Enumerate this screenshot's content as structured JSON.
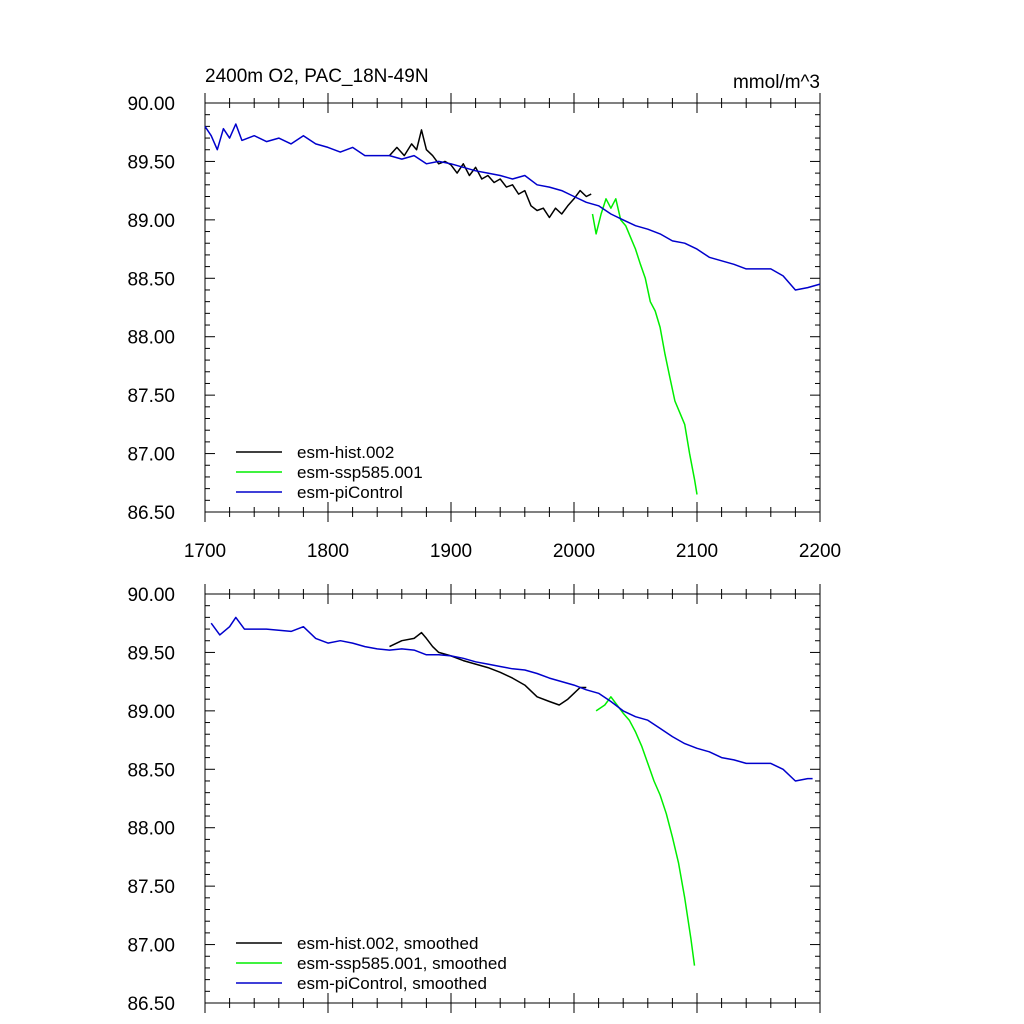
{
  "figure": {
    "title_left": "2400m O2, PAC_18N-49N",
    "title_right": "mmol/m^3"
  },
  "panels": [
    {
      "id": "raw",
      "legend": [
        {
          "label": "esm-hist.002",
          "color": "#000000"
        },
        {
          "label": "esm-ssp585.001",
          "color": "#00ee00"
        },
        {
          "label": "esm-piControl",
          "color": "#0000cc"
        }
      ],
      "x_tick_labels": [
        "1700",
        "1800",
        "1900",
        "2000",
        "2100",
        "2200"
      ],
      "y_tick_labels": [
        "90.00",
        "89.50",
        "89.00",
        "88.50",
        "88.00",
        "87.50",
        "87.00",
        "86.50"
      ]
    },
    {
      "id": "smoothed",
      "legend": [
        {
          "label": "esm-hist.002, smoothed",
          "color": "#000000"
        },
        {
          "label": "esm-ssp585.001, smoothed",
          "color": "#00ee00"
        },
        {
          "label": "esm-piControl, smoothed",
          "color": "#0000cc"
        }
      ],
      "y_tick_labels": [
        "90.00",
        "89.50",
        "89.00",
        "88.50",
        "88.00",
        "87.50",
        "87.00",
        "86.50"
      ]
    }
  ],
  "chart_data": [
    {
      "type": "line",
      "title": "2400m O2, PAC_18N-49N",
      "units": "mmol/m^3",
      "xlim": [
        1700,
        2200
      ],
      "ylim": [
        86.5,
        90.0
      ],
      "x_ticks": [
        1700,
        1800,
        1900,
        2000,
        2100,
        2200
      ],
      "y_ticks": [
        90.0,
        89.5,
        89.0,
        88.5,
        88.0,
        87.5,
        87.0,
        86.5
      ],
      "series": [
        {
          "name": "esm-hist.002",
          "color": "#000000",
          "points": [
            [
              1850,
              89.55
            ],
            [
              1856,
              89.62
            ],
            [
              1862,
              89.55
            ],
            [
              1868,
              89.65
            ],
            [
              1872,
              89.6
            ],
            [
              1876,
              89.77
            ],
            [
              1880,
              89.6
            ],
            [
              1885,
              89.55
            ],
            [
              1890,
              89.48
            ],
            [
              1895,
              89.5
            ],
            [
              1900,
              89.47
            ],
            [
              1905,
              89.4
            ],
            [
              1910,
              89.48
            ],
            [
              1915,
              89.38
            ],
            [
              1920,
              89.45
            ],
            [
              1925,
              89.35
            ],
            [
              1930,
              89.38
            ],
            [
              1935,
              89.32
            ],
            [
              1940,
              89.35
            ],
            [
              1945,
              89.28
            ],
            [
              1950,
              89.3
            ],
            [
              1955,
              89.22
            ],
            [
              1960,
              89.25
            ],
            [
              1965,
              89.12
            ],
            [
              1970,
              89.08
            ],
            [
              1975,
              89.1
            ],
            [
              1980,
              89.02
            ],
            [
              1985,
              89.1
            ],
            [
              1990,
              89.05
            ],
            [
              1995,
              89.12
            ],
            [
              2000,
              89.18
            ],
            [
              2005,
              89.25
            ],
            [
              2010,
              89.2
            ],
            [
              2014,
              89.22
            ]
          ]
        },
        {
          "name": "esm-ssp585.001",
          "color": "#00ee00",
          "points": [
            [
              2015,
              89.05
            ],
            [
              2018,
              88.88
            ],
            [
              2022,
              89.05
            ],
            [
              2026,
              89.18
            ],
            [
              2030,
              89.1
            ],
            [
              2034,
              89.18
            ],
            [
              2038,
              89.0
            ],
            [
              2042,
              88.95
            ],
            [
              2046,
              88.85
            ],
            [
              2050,
              88.75
            ],
            [
              2054,
              88.62
            ],
            [
              2058,
              88.5
            ],
            [
              2062,
              88.3
            ],
            [
              2066,
              88.22
            ],
            [
              2070,
              88.08
            ],
            [
              2074,
              87.85
            ],
            [
              2078,
              87.65
            ],
            [
              2082,
              87.45
            ],
            [
              2086,
              87.35
            ],
            [
              2090,
              87.25
            ],
            [
              2094,
              87.0
            ],
            [
              2098,
              86.78
            ],
            [
              2100,
              86.65
            ]
          ]
        },
        {
          "name": "esm-piControl",
          "color": "#0000cc",
          "points": [
            [
              1700,
              89.8
            ],
            [
              1705,
              89.72
            ],
            [
              1710,
              89.6
            ],
            [
              1715,
              89.78
            ],
            [
              1720,
              89.7
            ],
            [
              1725,
              89.82
            ],
            [
              1730,
              89.68
            ],
            [
              1740,
              89.72
            ],
            [
              1750,
              89.67
            ],
            [
              1760,
              89.7
            ],
            [
              1770,
              89.65
            ],
            [
              1780,
              89.72
            ],
            [
              1790,
              89.65
            ],
            [
              1800,
              89.62
            ],
            [
              1810,
              89.58
            ],
            [
              1820,
              89.62
            ],
            [
              1830,
              89.55
            ],
            [
              1840,
              89.55
            ],
            [
              1850,
              89.55
            ],
            [
              1860,
              89.52
            ],
            [
              1870,
              89.55
            ],
            [
              1880,
              89.48
            ],
            [
              1890,
              89.5
            ],
            [
              1900,
              89.48
            ],
            [
              1910,
              89.45
            ],
            [
              1920,
              89.42
            ],
            [
              1930,
              89.4
            ],
            [
              1940,
              89.38
            ],
            [
              1950,
              89.35
            ],
            [
              1960,
              89.38
            ],
            [
              1970,
              89.3
            ],
            [
              1980,
              89.28
            ],
            [
              1990,
              89.25
            ],
            [
              2000,
              89.2
            ],
            [
              2010,
              89.15
            ],
            [
              2020,
              89.12
            ],
            [
              2030,
              89.05
            ],
            [
              2040,
              89.0
            ],
            [
              2050,
              88.95
            ],
            [
              2060,
              88.92
            ],
            [
              2070,
              88.88
            ],
            [
              2080,
              88.82
            ],
            [
              2090,
              88.8
            ],
            [
              2100,
              88.75
            ],
            [
              2110,
              88.68
            ],
            [
              2120,
              88.65
            ],
            [
              2130,
              88.62
            ],
            [
              2140,
              88.58
            ],
            [
              2150,
              88.58
            ],
            [
              2160,
              88.58
            ],
            [
              2170,
              88.52
            ],
            [
              2180,
              88.4
            ],
            [
              2190,
              88.42
            ],
            [
              2200,
              88.45
            ]
          ]
        }
      ]
    },
    {
      "type": "line",
      "xlim": [
        1700,
        2200
      ],
      "ylim": [
        86.5,
        90.0
      ],
      "y_ticks": [
        90.0,
        89.5,
        89.0,
        88.5,
        88.0,
        87.5,
        87.0,
        86.5
      ],
      "series": [
        {
          "name": "esm-hist.002, smoothed",
          "color": "#000000",
          "points": [
            [
              1850,
              89.55
            ],
            [
              1860,
              89.6
            ],
            [
              1870,
              89.62
            ],
            [
              1876,
              89.67
            ],
            [
              1880,
              89.62
            ],
            [
              1885,
              89.55
            ],
            [
              1890,
              89.5
            ],
            [
              1900,
              89.47
            ],
            [
              1910,
              89.43
            ],
            [
              1920,
              89.4
            ],
            [
              1930,
              89.37
            ],
            [
              1940,
              89.33
            ],
            [
              1950,
              89.28
            ],
            [
              1960,
              89.22
            ],
            [
              1970,
              89.12
            ],
            [
              1980,
              89.08
            ],
            [
              1988,
              89.05
            ],
            [
              1995,
              89.1
            ],
            [
              2000,
              89.15
            ],
            [
              2005,
              89.2
            ],
            [
              2010,
              89.2
            ]
          ]
        },
        {
          "name": "esm-ssp585.001, smoothed",
          "color": "#00ee00",
          "points": [
            [
              2018,
              89.0
            ],
            [
              2025,
              89.05
            ],
            [
              2030,
              89.12
            ],
            [
              2035,
              89.05
            ],
            [
              2040,
              88.98
            ],
            [
              2045,
              88.92
            ],
            [
              2050,
              88.82
            ],
            [
              2055,
              88.7
            ],
            [
              2060,
              88.55
            ],
            [
              2065,
              88.4
            ],
            [
              2070,
              88.28
            ],
            [
              2075,
              88.12
            ],
            [
              2080,
              87.92
            ],
            [
              2085,
              87.7
            ],
            [
              2090,
              87.4
            ],
            [
              2095,
              87.05
            ],
            [
              2098,
              86.82
            ]
          ]
        },
        {
          "name": "esm-piControl, smoothed",
          "color": "#0000cc",
          "points": [
            [
              1705,
              89.75
            ],
            [
              1712,
              89.65
            ],
            [
              1720,
              89.72
            ],
            [
              1725,
              89.8
            ],
            [
              1732,
              89.7
            ],
            [
              1740,
              89.7
            ],
            [
              1750,
              89.7
            ],
            [
              1760,
              89.69
            ],
            [
              1770,
              89.68
            ],
            [
              1780,
              89.72
            ],
            [
              1790,
              89.62
            ],
            [
              1800,
              89.58
            ],
            [
              1810,
              89.6
            ],
            [
              1820,
              89.58
            ],
            [
              1830,
              89.55
            ],
            [
              1840,
              89.53
            ],
            [
              1850,
              89.52
            ],
            [
              1860,
              89.53
            ],
            [
              1870,
              89.52
            ],
            [
              1880,
              89.48
            ],
            [
              1890,
              89.48
            ],
            [
              1900,
              89.47
            ],
            [
              1910,
              89.45
            ],
            [
              1920,
              89.42
            ],
            [
              1930,
              89.4
            ],
            [
              1940,
              89.38
            ],
            [
              1950,
              89.36
            ],
            [
              1960,
              89.35
            ],
            [
              1970,
              89.32
            ],
            [
              1980,
              89.28
            ],
            [
              1990,
              89.25
            ],
            [
              2000,
              89.22
            ],
            [
              2010,
              89.18
            ],
            [
              2020,
              89.15
            ],
            [
              2030,
              89.08
            ],
            [
              2040,
              89.0
            ],
            [
              2050,
              88.95
            ],
            [
              2060,
              88.92
            ],
            [
              2070,
              88.85
            ],
            [
              2080,
              88.78
            ],
            [
              2090,
              88.72
            ],
            [
              2100,
              88.68
            ],
            [
              2110,
              88.65
            ],
            [
              2120,
              88.6
            ],
            [
              2130,
              88.58
            ],
            [
              2140,
              88.55
            ],
            [
              2150,
              88.55
            ],
            [
              2160,
              88.55
            ],
            [
              2170,
              88.5
            ],
            [
              2180,
              88.4
            ],
            [
              2190,
              88.42
            ],
            [
              2194,
              88.42
            ]
          ]
        }
      ]
    }
  ]
}
